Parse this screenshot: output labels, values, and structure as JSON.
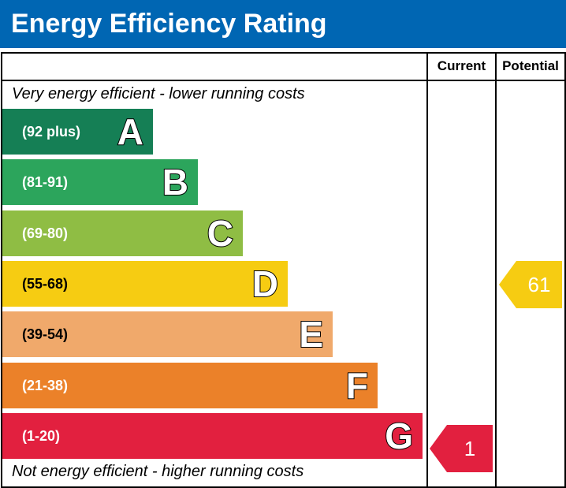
{
  "header": {
    "title": "Energy Efficiency Rating",
    "color": "#0066b3"
  },
  "columns": {
    "current": "Current",
    "potential": "Potential"
  },
  "captions": {
    "top": "Very energy efficient - lower running costs",
    "bottom": "Not energy efficient - higher running costs"
  },
  "chart_data": {
    "type": "bar",
    "title": "Energy Efficiency Rating",
    "bands": [
      {
        "letter": "A",
        "range": "(92 plus)",
        "min": 92,
        "max": 100,
        "color": "#157f55"
      },
      {
        "letter": "B",
        "range": "(81-91)",
        "min": 81,
        "max": 91,
        "color": "#2ca55c"
      },
      {
        "letter": "C",
        "range": "(69-80)",
        "min": 69,
        "max": 80,
        "color": "#8fbd44"
      },
      {
        "letter": "D",
        "range": "(55-68)",
        "min": 55,
        "max": 68,
        "color": "#f6cc12"
      },
      {
        "letter": "E",
        "range": "(39-54)",
        "min": 39,
        "max": 54,
        "color": "#f0a96b"
      },
      {
        "letter": "F",
        "range": "(21-38)",
        "min": 21,
        "max": 38,
        "color": "#eb8129"
      },
      {
        "letter": "G",
        "range": "(1-20)",
        "min": 1,
        "max": 20,
        "color": "#e2203f"
      }
    ],
    "current": {
      "value": "1",
      "band": "G",
      "color": "#e2203f"
    },
    "potential": {
      "value": "61",
      "band": "D",
      "color": "#f6cc12"
    }
  }
}
